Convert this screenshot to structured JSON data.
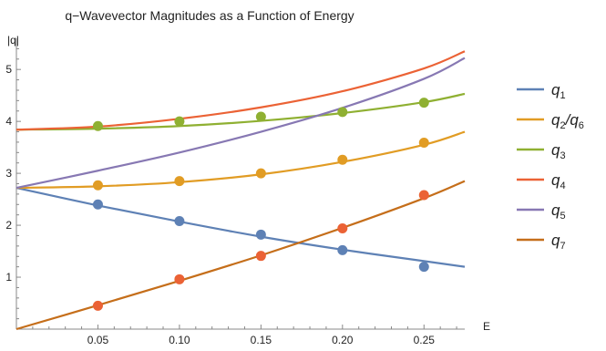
{
  "chart_data": {
    "type": "line",
    "title": "q−Wavevector Magnitudes as a Function of Energy",
    "xlabel": "E",
    "ylabel": "|q|",
    "xlim": [
      0,
      0.275
    ],
    "ylim": [
      0,
      5.6
    ],
    "x_ticks": [
      "0.05",
      "0.10",
      "0.15",
      "0.20",
      "0.25"
    ],
    "x_tick_values": [
      0.05,
      0.1,
      0.15,
      0.2,
      0.25
    ],
    "y_ticks": [
      "1",
      "2",
      "3",
      "4",
      "5"
    ],
    "y_tick_values": [
      1,
      2,
      3,
      4,
      5
    ],
    "grid": false,
    "legend_position": "right",
    "series": [
      {
        "name": "q1",
        "label_main": "q",
        "label_sub": "1",
        "color": "#5e81b5",
        "curve": [
          [
            0,
            2.72
          ],
          [
            0.05,
            2.38
          ],
          [
            0.1,
            2.07
          ],
          [
            0.15,
            1.78
          ],
          [
            0.2,
            1.53
          ],
          [
            0.25,
            1.31
          ],
          [
            0.275,
            1.2
          ]
        ],
        "points": [
          [
            0.05,
            2.4
          ],
          [
            0.1,
            2.08
          ],
          [
            0.15,
            1.82
          ],
          [
            0.2,
            1.52
          ],
          [
            0.25,
            1.2
          ]
        ]
      },
      {
        "name": "q2/q6",
        "label_main": "q",
        "label_sub": "2",
        "label_rest": "/q",
        "label_sub2": "6",
        "color": "#e19c24",
        "curve": [
          [
            0,
            2.72
          ],
          [
            0.05,
            2.75
          ],
          [
            0.1,
            2.83
          ],
          [
            0.15,
            2.98
          ],
          [
            0.2,
            3.22
          ],
          [
            0.25,
            3.55
          ],
          [
            0.275,
            3.8
          ]
        ],
        "points": [
          [
            0.05,
            2.77
          ],
          [
            0.1,
            2.85
          ],
          [
            0.15,
            3.0
          ],
          [
            0.2,
            3.26
          ],
          [
            0.25,
            3.59
          ]
        ]
      },
      {
        "name": "q3",
        "label_main": "q",
        "label_sub": "3",
        "color": "#8fb032",
        "curve": [
          [
            0,
            3.84
          ],
          [
            0.05,
            3.86
          ],
          [
            0.1,
            3.91
          ],
          [
            0.15,
            4.01
          ],
          [
            0.2,
            4.16
          ],
          [
            0.25,
            4.37
          ],
          [
            0.275,
            4.53
          ]
        ],
        "points": [
          [
            0.05,
            3.91
          ],
          [
            0.1,
            4.0
          ],
          [
            0.15,
            4.09
          ],
          [
            0.2,
            4.18
          ],
          [
            0.25,
            4.36
          ]
        ]
      },
      {
        "name": "q4",
        "label_main": "q",
        "label_sub": "4",
        "color": "#eb6235",
        "curve": [
          [
            0,
            3.84
          ],
          [
            0.05,
            3.9
          ],
          [
            0.1,
            4.05
          ],
          [
            0.15,
            4.27
          ],
          [
            0.2,
            4.58
          ],
          [
            0.25,
            5.02
          ],
          [
            0.275,
            5.35
          ]
        ],
        "points": [
          [
            0.05,
            0.45
          ],
          [
            0.1,
            0.96
          ],
          [
            0.15,
            1.41
          ],
          [
            0.2,
            1.94
          ],
          [
            0.25,
            2.58
          ]
        ]
      },
      {
        "name": "q5",
        "label_main": "q",
        "label_sub": "5",
        "color": "#8778b3",
        "curve": [
          [
            0,
            2.72
          ],
          [
            0.05,
            3.05
          ],
          [
            0.1,
            3.4
          ],
          [
            0.15,
            3.8
          ],
          [
            0.2,
            4.26
          ],
          [
            0.25,
            4.82
          ],
          [
            0.275,
            5.22
          ]
        ],
        "points": []
      },
      {
        "name": "q7",
        "label_main": "q",
        "label_sub": "7",
        "color": "#c56e1a",
        "curve": [
          [
            0,
            0.0
          ],
          [
            0.05,
            0.46
          ],
          [
            0.1,
            0.93
          ],
          [
            0.15,
            1.42
          ],
          [
            0.2,
            1.95
          ],
          [
            0.25,
            2.52
          ],
          [
            0.275,
            2.85
          ]
        ],
        "points": []
      }
    ]
  }
}
